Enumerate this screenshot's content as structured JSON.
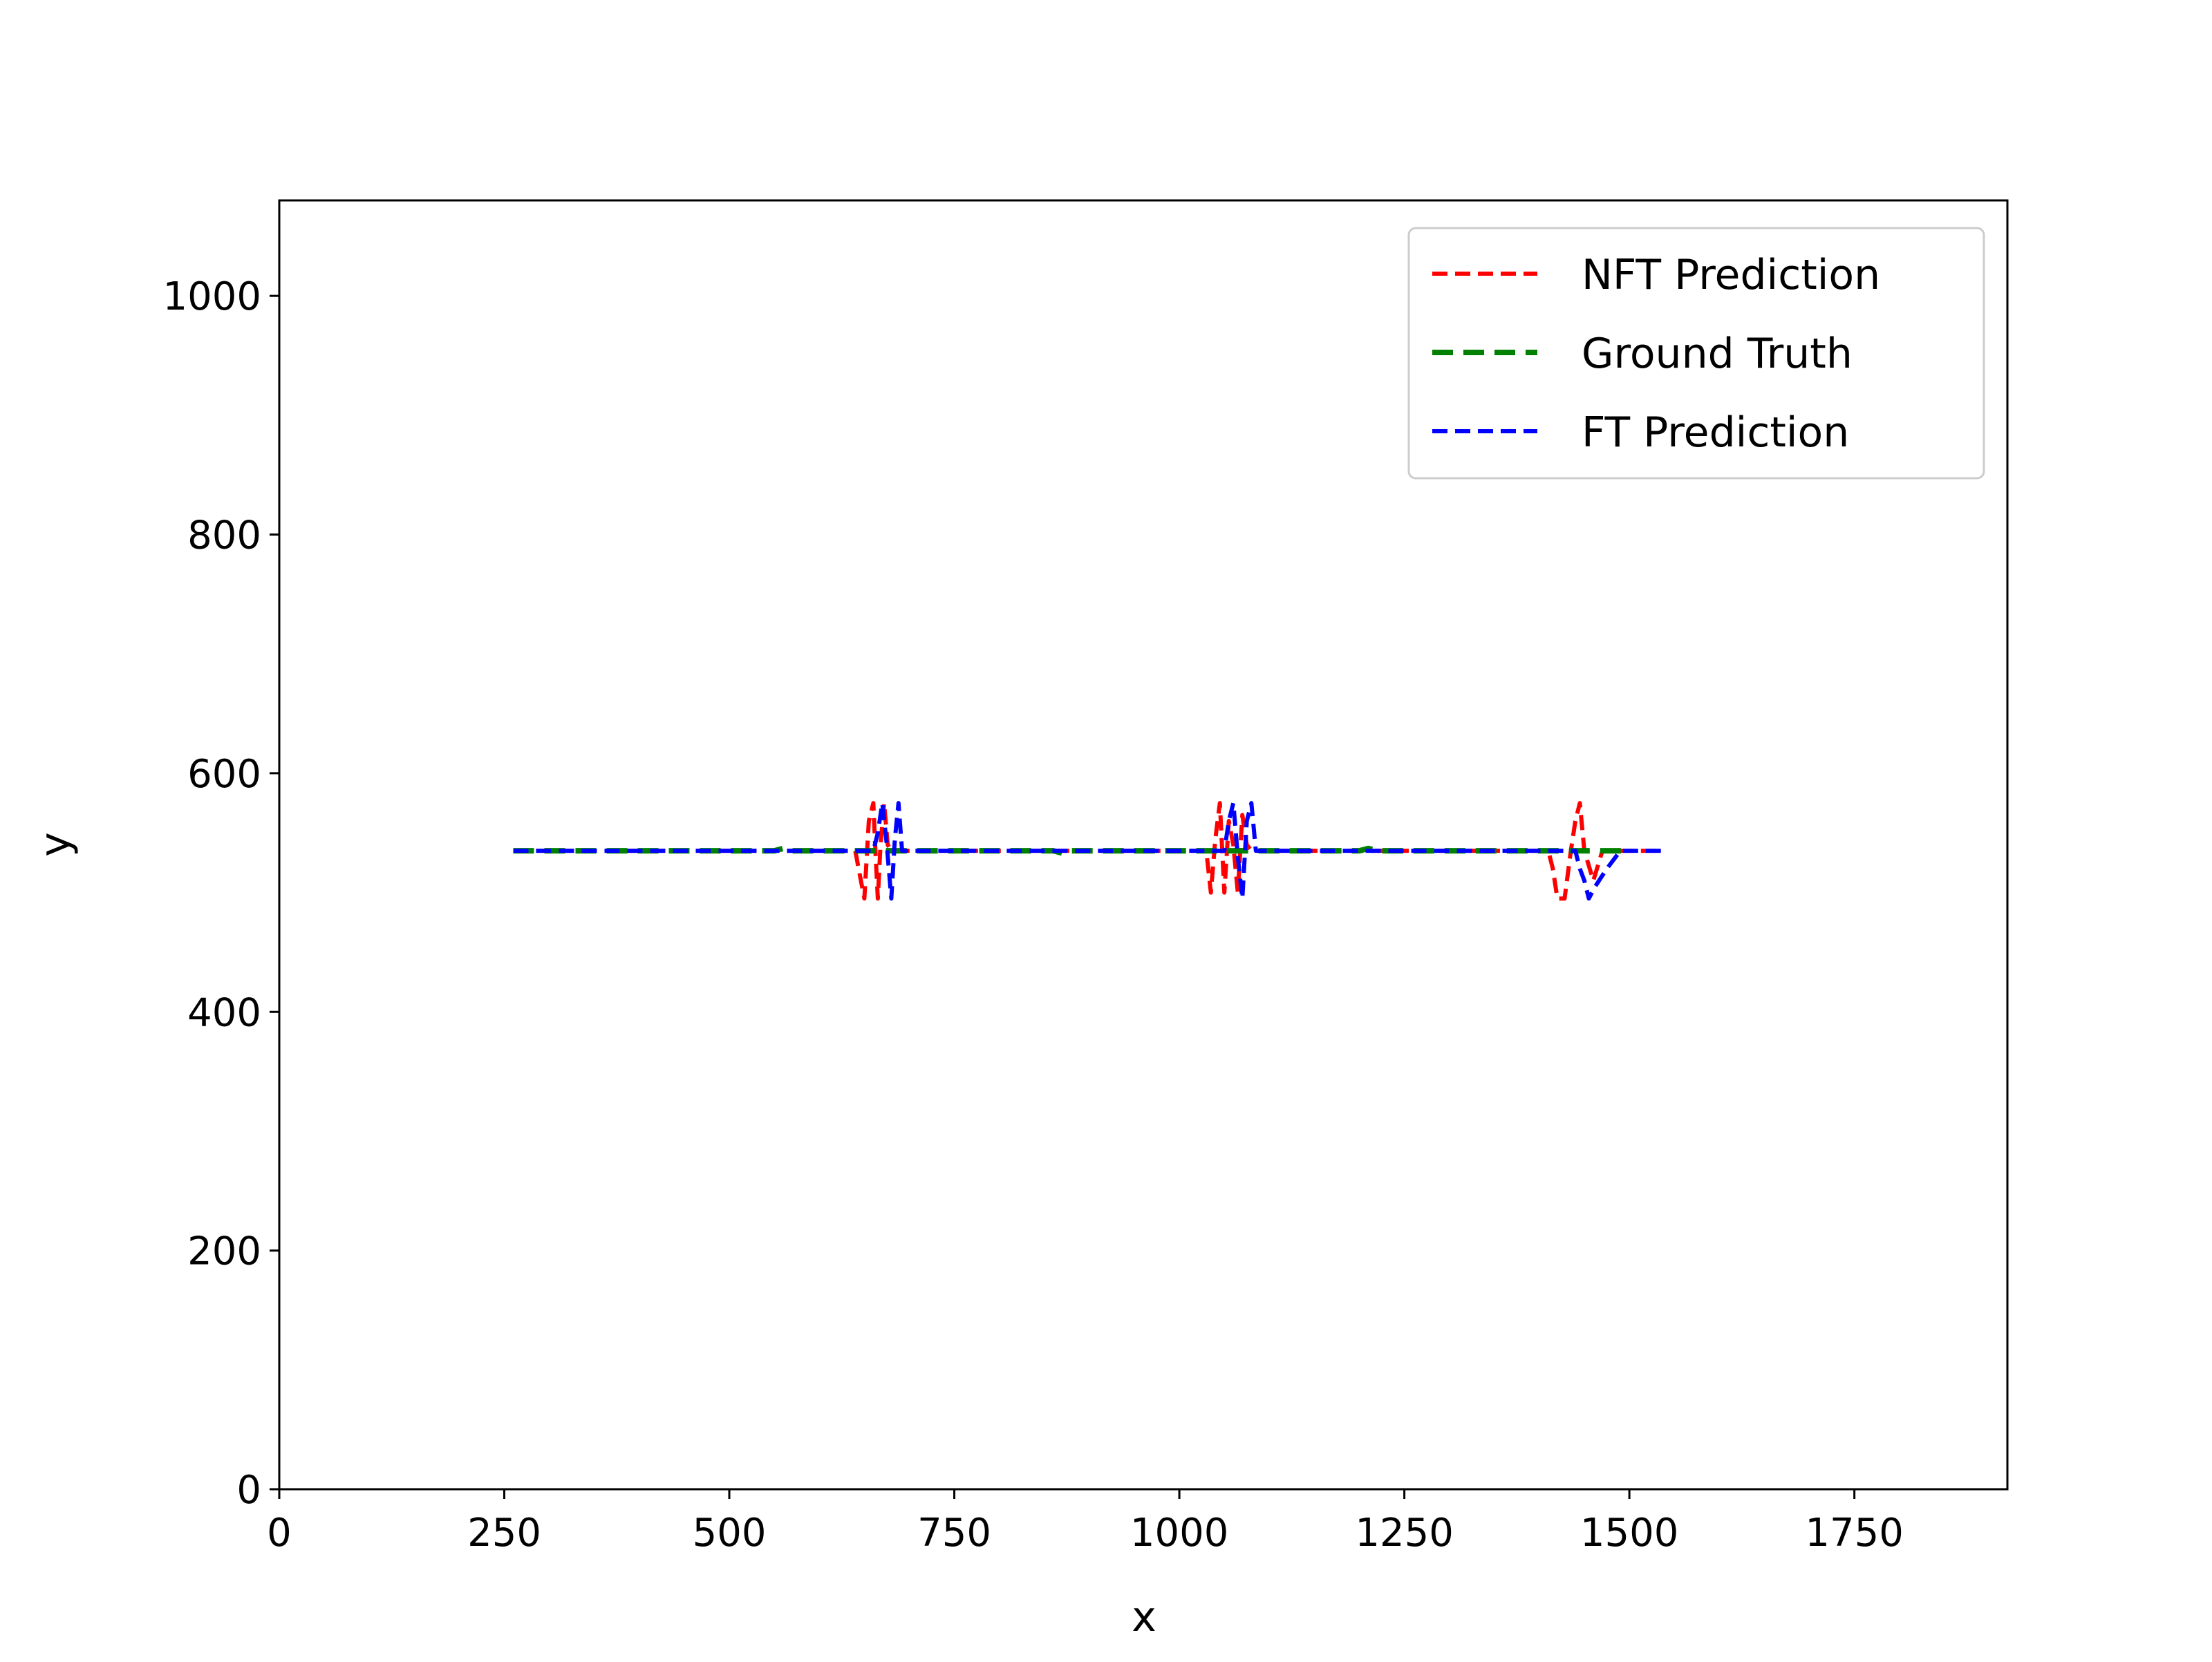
{
  "chart_data": {
    "type": "line",
    "title": "",
    "xlabel": "x",
    "ylabel": "y",
    "xlim": [
      0,
      1920
    ],
    "ylim": [
      0,
      1080
    ],
    "xticks": [
      0,
      250,
      500,
      750,
      1000,
      1250,
      1500,
      1750
    ],
    "yticks": [
      0,
      200,
      400,
      600,
      800,
      1000
    ],
    "xtick_labels": [
      "0",
      "250",
      "500",
      "750",
      "1000",
      "1250",
      "1500",
      "1750"
    ],
    "ytick_labels": [
      "0",
      "200",
      "400",
      "600",
      "800",
      "1000"
    ],
    "grid": false,
    "legend_position": "top-right",
    "series": [
      {
        "name": "NFT Prediction",
        "color": "#ff0000",
        "style": "dashed",
        "points": [
          [
            260,
            535
          ],
          [
            640,
            535
          ],
          [
            645,
            515
          ],
          [
            650,
            495
          ],
          [
            655,
            560
          ],
          [
            660,
            575
          ],
          [
            662,
            540
          ],
          [
            665,
            495
          ],
          [
            668,
            540
          ],
          [
            672,
            575
          ],
          [
            676,
            540
          ],
          [
            680,
            535
          ],
          [
            1030,
            535
          ],
          [
            1035,
            500
          ],
          [
            1040,
            545
          ],
          [
            1045,
            575
          ],
          [
            1050,
            500
          ],
          [
            1055,
            560
          ],
          [
            1060,
            540
          ],
          [
            1065,
            500
          ],
          [
            1070,
            565
          ],
          [
            1075,
            540
          ],
          [
            1080,
            535
          ],
          [
            1410,
            535
          ],
          [
            1415,
            520
          ],
          [
            1420,
            495
          ],
          [
            1428,
            495
          ],
          [
            1435,
            535
          ],
          [
            1440,
            560
          ],
          [
            1445,
            575
          ],
          [
            1450,
            535
          ],
          [
            1460,
            510
          ],
          [
            1470,
            535
          ],
          [
            1535,
            535
          ]
        ]
      },
      {
        "name": "Ground Truth",
        "color": "#008000",
        "style": "dashed",
        "points": [
          [
            260,
            535
          ],
          [
            550,
            535
          ],
          [
            560,
            537
          ],
          [
            570,
            535
          ],
          [
            700,
            535
          ],
          [
            860,
            535
          ],
          [
            870,
            533
          ],
          [
            880,
            535
          ],
          [
            1200,
            535
          ],
          [
            1210,
            537
          ],
          [
            1220,
            535
          ],
          [
            1500,
            535
          ]
        ]
      },
      {
        "name": "FT Prediction",
        "color": "#0000ff",
        "style": "dashed",
        "points": [
          [
            260,
            535
          ],
          [
            660,
            535
          ],
          [
            665,
            550
          ],
          [
            670,
            575
          ],
          [
            675,
            540
          ],
          [
            680,
            495
          ],
          [
            684,
            545
          ],
          [
            688,
            575
          ],
          [
            692,
            535
          ],
          [
            1050,
            535
          ],
          [
            1055,
            560
          ],
          [
            1060,
            575
          ],
          [
            1065,
            530
          ],
          [
            1070,
            495
          ],
          [
            1075,
            560
          ],
          [
            1080,
            575
          ],
          [
            1085,
            535
          ],
          [
            1440,
            535
          ],
          [
            1445,
            520
          ],
          [
            1450,
            510
          ],
          [
            1455,
            495
          ],
          [
            1462,
            505
          ],
          [
            1475,
            520
          ],
          [
            1490,
            535
          ],
          [
            1535,
            535
          ]
        ]
      }
    ]
  }
}
